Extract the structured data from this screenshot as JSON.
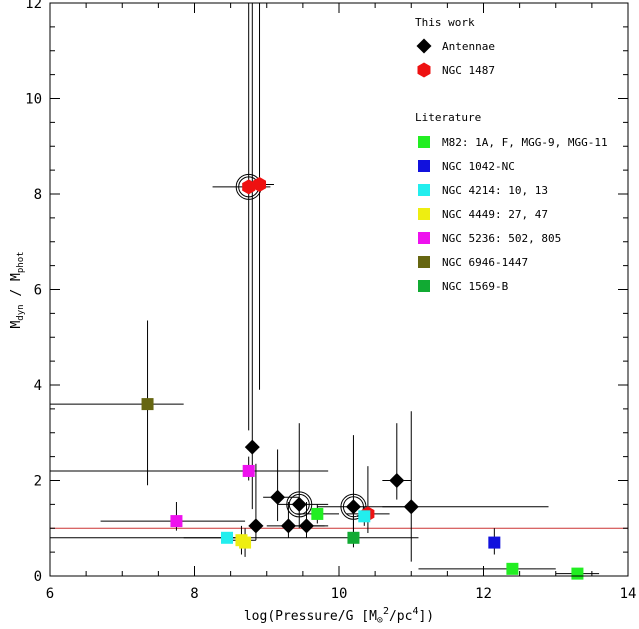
{
  "chart_data": {
    "type": "scatter",
    "xlabel_parts": [
      "log(Pressure/G [M",
      "⊙",
      "2",
      "/pc",
      "4",
      "])"
    ],
    "ylabel_parts": [
      "M",
      "dyn",
      " / M",
      "phot"
    ],
    "xlim": [
      6,
      14
    ],
    "ylim": [
      0,
      12
    ],
    "xticks": [
      6,
      8,
      10,
      12,
      14
    ],
    "yticks": [
      0,
      2,
      4,
      6,
      8,
      10,
      12
    ],
    "reference_line": {
      "y": 1,
      "color": "#cc3333"
    },
    "legend": {
      "section_titles": [
        "This work",
        "Literature"
      ],
      "this_work": [
        {
          "label": "Antennae",
          "marker": "diamond",
          "color": "#000000"
        },
        {
          "label": "NGC 1487",
          "marker": "hexagon",
          "color": "#ee1111"
        }
      ],
      "literature": [
        {
          "label": "M82: 1A, F, MGG-9, MGG-11",
          "marker": "square",
          "color": "#22ee22"
        },
        {
          "label": "NGC 1042-NC",
          "marker": "square",
          "color": "#1111dd"
        },
        {
          "label": "NGC 4214: 10, 13",
          "marker": "square",
          "color": "#22eeee"
        },
        {
          "label": "NGC 4449: 27, 47",
          "marker": "square",
          "color": "#eeee11"
        },
        {
          "label": "NGC 5236: 502, 805",
          "marker": "square",
          "color": "#ee11ee"
        },
        {
          "label": "NGC 6946-1447",
          "marker": "square",
          "color": "#666611"
        },
        {
          "label": "NGC 1569-B",
          "marker": "square",
          "color": "#11aa33"
        }
      ]
    },
    "series": [
      {
        "name": "Antennae",
        "marker": "diamond",
        "color": "#000000",
        "points": [
          {
            "x": 8.8,
            "y": 2.7,
            "xerr": [
              0.05,
              0.05
            ],
            "yerr": [
              1.3,
              9.3
            ]
          },
          {
            "x": 9.15,
            "y": 1.65,
            "xerr": [
              0.2,
              0.3
            ],
            "yerr": [
              0.5,
              1.0
            ]
          },
          {
            "x": 9.45,
            "y": 1.5,
            "xerr": [
              0.3,
              0.4
            ],
            "yerr": [
              0.5,
              1.7
            ],
            "circled": true
          },
          {
            "x": 10.2,
            "y": 1.45,
            "xerr": [
              0.5,
              0.8
            ],
            "yerr": [
              0.6,
              1.5
            ],
            "circled": true
          },
          {
            "x": 10.8,
            "y": 2.0,
            "xerr": [
              0.2,
              0.2
            ],
            "yerr": [
              0.4,
              1.2
            ]
          },
          {
            "x": 11.0,
            "y": 1.45,
            "xerr": [
              0.4,
              1.9
            ],
            "yerr": [
              1.15,
              2.0
            ]
          },
          {
            "x": 8.85,
            "y": 1.05,
            "xerr": [
              0.1,
              0.1
            ],
            "yerr": [
              0.3,
              1.3
            ]
          },
          {
            "x": 9.3,
            "y": 1.05,
            "xerr": [
              0.3,
              0.5
            ],
            "yerr": [
              0.25,
              0.5
            ]
          },
          {
            "x": 9.55,
            "y": 1.05,
            "xerr": [
              0.3,
              0.3
            ],
            "yerr": [
              0.25,
              0.5
            ]
          }
        ]
      },
      {
        "name": "NGC 1487",
        "marker": "hexagon",
        "color": "#ee1111",
        "points": [
          {
            "x": 8.75,
            "y": 8.15,
            "xerr": [
              0.5,
              0.3
            ],
            "yerr": [
              5.1,
              4.0
            ],
            "circled": true
          },
          {
            "x": 8.9,
            "y": 8.2,
            "xerr": [
              0.2,
              0.2
            ],
            "yerr": [
              4.3,
              4.0
            ]
          },
          {
            "x": 10.4,
            "y": 1.3,
            "xerr": [
              0.3,
              0.3
            ],
            "yerr": [
              0.4,
              1.0
            ]
          }
        ]
      },
      {
        "name": "M82: 1A, F, MGG-9, MGG-11",
        "marker": "square",
        "color": "#22ee22",
        "points": [
          {
            "x": 9.7,
            "y": 1.3,
            "xerr": [
              0.3,
              0.3
            ],
            "yerr": [
              0.2,
              0.2
            ]
          },
          {
            "x": 12.4,
            "y": 0.15,
            "xerr": [
              1.3,
              0.6
            ],
            "yerr": [
              0.05,
              0.05
            ]
          },
          {
            "x": 13.3,
            "y": 0.05,
            "xerr": [
              0.3,
              0.3
            ],
            "yerr": [
              0.05,
              0.05
            ]
          }
        ]
      },
      {
        "name": "NGC 1042-NC",
        "marker": "square",
        "color": "#1111dd",
        "points": [
          {
            "x": 12.15,
            "y": 0.7,
            "xerr": [
              0.0,
              0.0
            ],
            "yerr": [
              0.25,
              0.3
            ]
          }
        ]
      },
      {
        "name": "NGC 4214: 10, 13",
        "marker": "square",
        "color": "#22eeee",
        "points": [
          {
            "x": 8.45,
            "y": 0.8,
            "xerr": [
              0.6,
              0.3
            ],
            "yerr": [
              0.1,
              0.1
            ]
          },
          {
            "x": 10.35,
            "y": 1.25,
            "xerr": [
              0.1,
              0.1
            ],
            "yerr": [
              0.2,
              0.2
            ]
          }
        ]
      },
      {
        "name": "NGC 4449: 27, 47",
        "marker": "square",
        "color": "#eeee11",
        "points": [
          {
            "x": 8.65,
            "y": 0.75,
            "xerr": [
              0.2,
              0.2
            ],
            "yerr": [
              0.3,
              0.3
            ]
          },
          {
            "x": 8.7,
            "y": 0.7,
            "xerr": [
              0.0,
              0.0
            ],
            "yerr": [
              0.3,
              0.3
            ]
          }
        ]
      },
      {
        "name": "NGC 5236: 502, 805",
        "marker": "square",
        "color": "#ee11ee",
        "points": [
          {
            "x": 7.75,
            "y": 1.15,
            "xerr": [
              1.05,
              0.95
            ],
            "yerr": [
              0.2,
              0.4
            ]
          },
          {
            "x": 8.75,
            "y": 2.2,
            "xerr": [
              2.75,
              1.1
            ],
            "yerr": [
              0.2,
              0.3
            ]
          }
        ]
      },
      {
        "name": "NGC 6946-1447",
        "marker": "square",
        "color": "#666611",
        "points": [
          {
            "x": 7.35,
            "y": 3.6,
            "xerr": [
              1.35,
              0.5
            ],
            "yerr": [
              1.7,
              1.75
            ]
          }
        ]
      },
      {
        "name": "NGC 1569-B",
        "marker": "square",
        "color": "#11aa33",
        "points": [
          {
            "x": 10.2,
            "y": 0.8,
            "xerr": [
              4.2,
              0.9
            ],
            "yerr": [
              0.2,
              0.6
            ]
          }
        ]
      }
    ]
  }
}
